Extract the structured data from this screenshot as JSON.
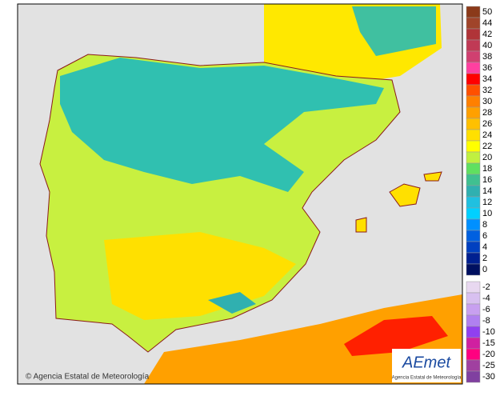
{
  "legend": [
    {
      "label": 50,
      "color": "#8b3a1a"
    },
    {
      "label": 44,
      "color": "#a0442a"
    },
    {
      "label": 42,
      "color": "#b03438"
    },
    {
      "label": 40,
      "color": "#c03a55"
    },
    {
      "label": 38,
      "color": "#d04070"
    },
    {
      "label": 36,
      "color": "#ff40a0"
    },
    {
      "label": 34,
      "color": "#ff0000"
    },
    {
      "label": 32,
      "color": "#ff5000"
    },
    {
      "label": 30,
      "color": "#ff8000"
    },
    {
      "label": 28,
      "color": "#ffa000"
    },
    {
      "label": 26,
      "color": "#ffc000"
    },
    {
      "label": 24,
      "color": "#ffe000"
    },
    {
      "label": 22,
      "color": "#ffff00"
    },
    {
      "label": 20,
      "color": "#c0f040"
    },
    {
      "label": 18,
      "color": "#60e060"
    },
    {
      "label": 16,
      "color": "#40c090"
    },
    {
      "label": 14,
      "color": "#30b0b0"
    },
    {
      "label": 12,
      "color": "#20c0e0"
    },
    {
      "label": 10,
      "color": "#00d0ff"
    },
    {
      "label": 8,
      "color": "#0090ff"
    },
    {
      "label": 6,
      "color": "#0060e0"
    },
    {
      "label": 4,
      "color": "#0040c0"
    },
    {
      "label": 2,
      "color": "#002090"
    },
    {
      "label": 0,
      "color": "#001060"
    },
    {
      "label": -2,
      "color": "#e8d8f0"
    },
    {
      "label": -4,
      "color": "#d8c0f0"
    },
    {
      "label": -6,
      "color": "#c8a0f0"
    },
    {
      "label": -8,
      "color": "#b080f0"
    },
    {
      "label": -10,
      "color": "#9040f0"
    },
    {
      "label": -15,
      "color": "#d020a0"
    },
    {
      "label": -20,
      "color": "#ff0080"
    },
    {
      "label": -25,
      "color": "#a040a0"
    },
    {
      "label": -30,
      "color": "#8040a0"
    }
  ],
  "credit": "© Agencia Estatal de Meteorología",
  "logo": {
    "title": "AEmet",
    "subtitle": "Agencia Estatal de Meteorología"
  }
}
